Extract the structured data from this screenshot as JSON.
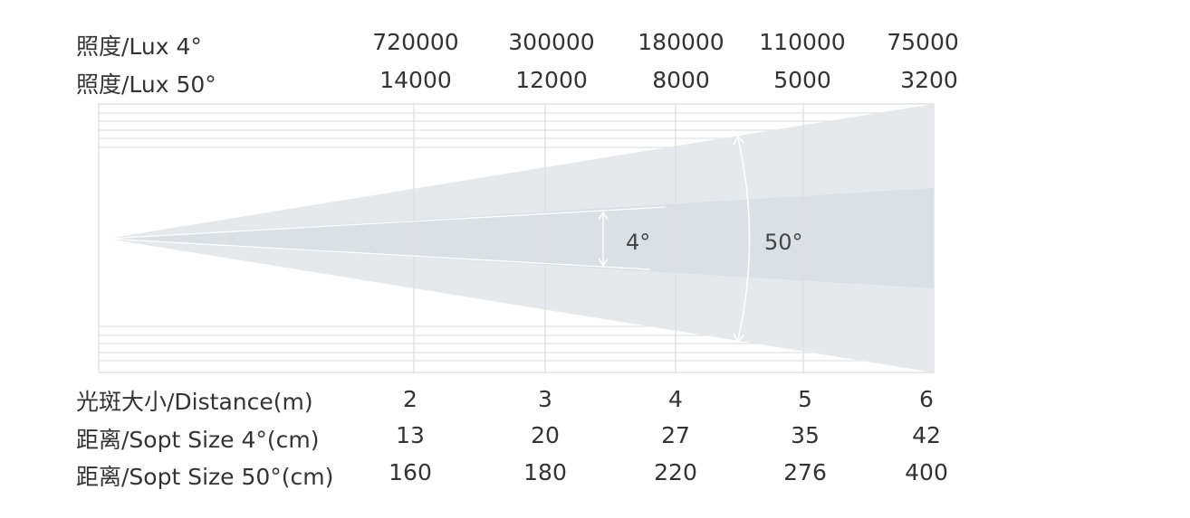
{
  "top_rows": {
    "lux_4": {
      "label": "照度/Lux 4°",
      "values": [
        "720000",
        "300000",
        "180000",
        "110000",
        "75000"
      ]
    },
    "lux_50": {
      "label": "照度/Lux 50°",
      "values": [
        "14000",
        "12000",
        "8000",
        "5000",
        "3200"
      ]
    }
  },
  "bottom_rows": {
    "distance": {
      "label": "光斑大小/Distance(m)",
      "values": [
        "2",
        "3",
        "4",
        "5",
        "6"
      ]
    },
    "spot_4": {
      "label": "距离/Sopt Size 4°(cm)",
      "values": [
        "13",
        "20",
        "27",
        "35",
        "42"
      ]
    },
    "spot_50": {
      "label": "距离/Sopt Size 50°(cm)",
      "values": [
        "160",
        "180",
        "220",
        "276",
        "400"
      ]
    }
  },
  "beam": {
    "narrow_label": "4°",
    "wide_label": "50°"
  },
  "colors": {
    "wide_beam": "#e6e9ec",
    "narrow_beam": "#d9dee3",
    "grid": "#d9dadc",
    "text": "#333333"
  }
}
